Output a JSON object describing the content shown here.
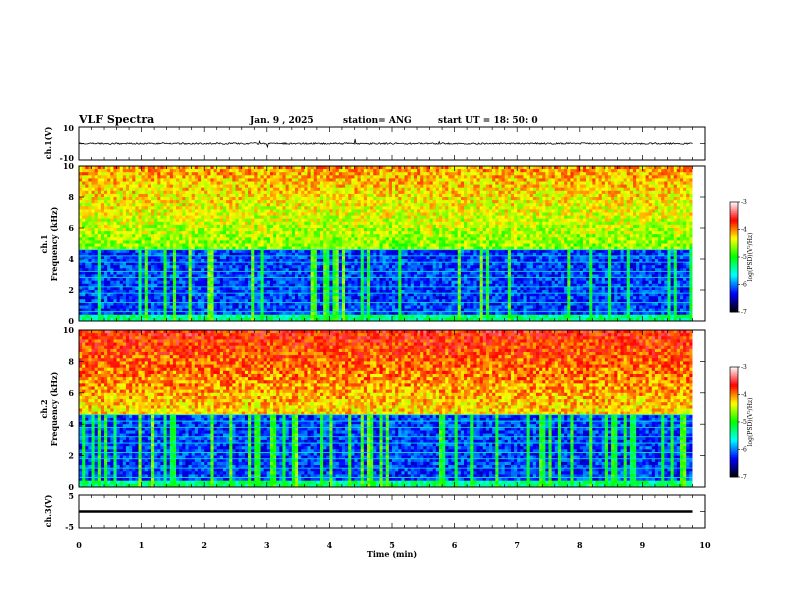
{
  "header": {
    "title": "VLF Spectra",
    "date": "Jan. 9 , 2025",
    "station": "station= ANG",
    "start": "start UT = 18: 50: 0"
  },
  "chart_data": [
    {
      "id": "ch1-waveform",
      "type": "line",
      "ylabel": "ch.1(V)",
      "ylim": [
        -10,
        10
      ],
      "yticks": [
        "10",
        "-10"
      ],
      "xlim": [
        0,
        10
      ],
      "x_extent": [
        0,
        9.8
      ],
      "baseline": 0,
      "amplitude": 0.8,
      "color": "#000000"
    },
    {
      "id": "ch1-spectrogram",
      "type": "heatmap",
      "ylabel": "Frequency (kHz)",
      "channel_label": "ch.1",
      "ylim": [
        0,
        10
      ],
      "yticks": [
        "0",
        "2",
        "4",
        "6",
        "8",
        "10"
      ],
      "xlim": [
        0,
        10
      ],
      "x_extent": [
        0,
        9.8
      ],
      "colorbar": {
        "label": "log(PSD)(V²/Hz)",
        "range": [
          -7,
          -3
        ],
        "ticks": [
          "-3",
          "-4",
          "-5",
          "-6",
          "-7"
        ],
        "colormap": [
          "#000000",
          "#0000ff",
          "#00ffff",
          "#00ff00",
          "#ffff00",
          "#ff0000",
          "#ffffff"
        ]
      }
    },
    {
      "id": "ch2-spectrogram",
      "type": "heatmap",
      "ylabel": "Frequency (kHz)",
      "channel_label": "ch.2",
      "ylim": [
        0,
        10
      ],
      "yticks": [
        "0",
        "2",
        "4",
        "6",
        "8",
        "10"
      ],
      "xlim": [
        0,
        10
      ],
      "x_extent": [
        0,
        9.8
      ],
      "colorbar": {
        "label": "log(PSD)(V²/Hz)",
        "range": [
          -7,
          -3
        ],
        "ticks": [
          "-3",
          "-4",
          "-5",
          "-6",
          "-7"
        ],
        "colormap": [
          "#000000",
          "#0000ff",
          "#00ffff",
          "#00ff00",
          "#ffff00",
          "#ff0000",
          "#ffffff"
        ]
      }
    },
    {
      "id": "ch3-waveform",
      "type": "line",
      "ylabel": "ch.3(V)",
      "ylim": [
        -5,
        5
      ],
      "yticks": [
        "5",
        "-5"
      ],
      "xlim": [
        0,
        10
      ],
      "x_extent": [
        0,
        9.8
      ],
      "baseline": 0,
      "amplitude": 0.3,
      "color": "#000000"
    }
  ],
  "xaxis": {
    "label": "Time (min)",
    "ticks": [
      "0",
      "1",
      "2",
      "3",
      "4",
      "5",
      "6",
      "7",
      "8",
      "9",
      "10"
    ]
  }
}
